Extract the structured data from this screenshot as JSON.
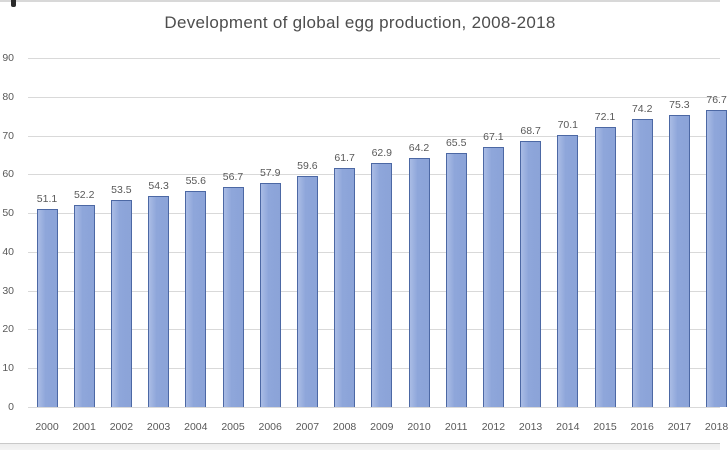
{
  "chart_data": {
    "type": "bar",
    "title": "Development of global egg production, 2008-2018",
    "categories": [
      "2000",
      "2001",
      "2002",
      "2003",
      "2004",
      "2005",
      "2006",
      "2007",
      "2008",
      "2009",
      "2010",
      "2011",
      "2012",
      "2013",
      "2014",
      "2015",
      "2016",
      "2017",
      "2018"
    ],
    "values": [
      51.1,
      52.2,
      53.5,
      54.3,
      55.6,
      56.7,
      57.9,
      59.6,
      61.7,
      62.9,
      64.2,
      65.5,
      67.1,
      68.7,
      70.1,
      72.1,
      74.2,
      75.3,
      76.7
    ],
    "xlabel": "",
    "ylabel": "",
    "ylim": [
      0,
      90
    ],
    "yticks": [
      0,
      10,
      20,
      30,
      40,
      50,
      60,
      70,
      80,
      90
    ],
    "grid": true,
    "legend": false,
    "bar_value_labels_visible": true,
    "last_bar_clipped_at_right_edge": true
  },
  "style": {
    "bar_fill": "#8ea6da",
    "bar_fill_highlight": "#aabce5",
    "bar_border": "#4c68a4",
    "gridline_color": "#d9d9d9",
    "title_color": "#4d4d4d",
    "label_color": "#595959",
    "background": "#ffffff"
  }
}
